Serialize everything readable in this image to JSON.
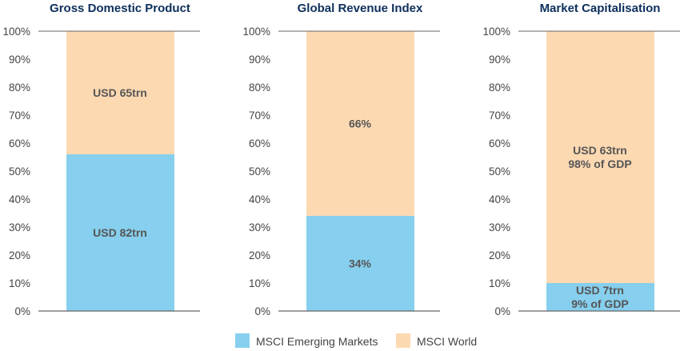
{
  "chart_data": [
    {
      "type": "bar",
      "stacked": "percent",
      "title": "Gross Domestic Product",
      "ylim": [
        0,
        100
      ],
      "yticks": [
        "0%",
        "10%",
        "20%",
        "30%",
        "40%",
        "50%",
        "60%",
        "70%",
        "80%",
        "90%",
        "100%"
      ],
      "series": [
        {
          "name": "MSCI Emerging Markets",
          "values": [
            56
          ],
          "label": [
            "USD 82trn"
          ]
        },
        {
          "name": "MSCI World",
          "values": [
            44
          ],
          "label": [
            "USD 65trn"
          ]
        }
      ]
    },
    {
      "type": "bar",
      "stacked": "percent",
      "title": "Global Revenue Index",
      "ylim": [
        0,
        100
      ],
      "yticks": [
        "0%",
        "10%",
        "20%",
        "30%",
        "40%",
        "50%",
        "60%",
        "70%",
        "80%",
        "90%",
        "100%"
      ],
      "series": [
        {
          "name": "MSCI Emerging Markets",
          "values": [
            34
          ],
          "label": [
            "34%"
          ]
        },
        {
          "name": "MSCI World",
          "values": [
            66
          ],
          "label": [
            "66%"
          ]
        }
      ]
    },
    {
      "type": "bar",
      "stacked": "percent",
      "title": "Market Capitalisation",
      "ylim": [
        0,
        100
      ],
      "yticks": [
        "0%",
        "10%",
        "20%",
        "30%",
        "40%",
        "50%",
        "60%",
        "70%",
        "80%",
        "90%",
        "100%"
      ],
      "series": [
        {
          "name": "MSCI Emerging Markets",
          "values": [
            10
          ],
          "label": [
            "USD 7trn",
            "9% of GDP"
          ]
        },
        {
          "name": "MSCI World",
          "values": [
            90
          ],
          "label": [
            "USD 63trn",
            "98% of GDP"
          ]
        }
      ]
    }
  ],
  "legend": {
    "placement": "bottom",
    "items": [
      {
        "name": "MSCI Emerging Markets",
        "color": "#87cfee"
      },
      {
        "name": "MSCI World",
        "color": "#fdd9b2"
      }
    ]
  },
  "colors": {
    "em": "#87cfee",
    "world": "#fdd9b2",
    "title": "#0d2f5c",
    "axis": "#666666"
  }
}
